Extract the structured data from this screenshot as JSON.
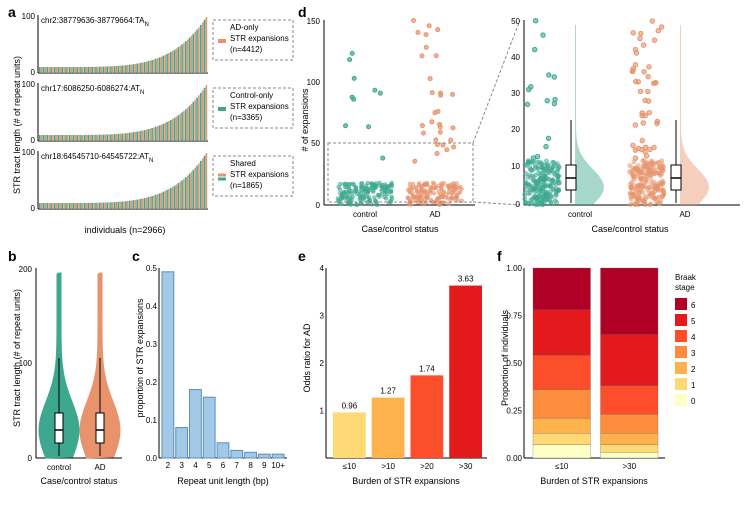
{
  "colors": {
    "ad": "#e8936c",
    "control": "#3da88f",
    "bar_blue": "#a3c9e8",
    "braak": [
      "#fefec7",
      "#fed976",
      "#feb24c",
      "#fd8d3c",
      "#fc4e2a",
      "#e31a1c",
      "#b10026"
    ],
    "axis": "#000000",
    "box_stroke": "#333333",
    "grid": "#888888"
  },
  "panel_a": {
    "label": "a",
    "ylabel": "STR tract length (# of repeat units)",
    "xlabel": "individuals (n=2966)",
    "ymax": 100,
    "tracks": [
      {
        "title": "chr2:38779636-38779664:TA",
        "subscript": "N"
      },
      {
        "title": "chr17:6086250-6086274:AT",
        "subscript": "N"
      },
      {
        "title": "chr18:64545710-64545722:AT",
        "subscript": "N"
      }
    ],
    "legends": [
      {
        "text": "AD-only\nSTR expansions\n(n=4412)",
        "color": "#e8936c"
      },
      {
        "text": "Control-only\nSTR expansions\n(n=3365)",
        "color": "#3da88f"
      },
      {
        "text": "Shared\nSTR expansions\n(n=1865)",
        "color_top": "#e8936c",
        "color_bottom": "#3da88f"
      }
    ]
  },
  "panel_b": {
    "label": "b",
    "xlabel": "Case/control status",
    "ylabel": "STR tract length (# of repeat units)",
    "ymax": 200,
    "categories": [
      "control",
      "AD"
    ]
  },
  "panel_c": {
    "label": "c",
    "xlabel": "Repeat unit length (bp)",
    "ylabel": "proportion of STR expansions",
    "categories": [
      "2",
      "3",
      "4",
      "5",
      "6",
      "7",
      "8",
      "9",
      "10+"
    ],
    "values": [
      0.49,
      0.08,
      0.18,
      0.16,
      0.04,
      0.02,
      0.015,
      0.01,
      0.01
    ],
    "ymax": 0.5
  },
  "panel_d": {
    "label": "d",
    "xlabel": "Case/control status",
    "ylabel": "# of expansions",
    "categories": [
      "control",
      "AD"
    ],
    "left_ymax": 150,
    "right_ymax": 50
  },
  "panel_e": {
    "label": "e",
    "xlabel": "Burden of STR expansions",
    "ylabel": "Odds ratio for AD",
    "categories": [
      "≤10",
      ">10",
      ">20",
      ">30"
    ],
    "values": [
      0.96,
      1.27,
      1.74,
      3.63
    ],
    "colors": [
      "#fed976",
      "#feb24c",
      "#fc4e2a",
      "#e31a1c"
    ],
    "ymax": 4
  },
  "panel_f": {
    "label": "f",
    "xlabel": "Burden of STR expansions",
    "ylabel": "Proportion of individuals",
    "legend_title": "Braak\nstage",
    "legend_labels": [
      "6",
      "5",
      "4",
      "3",
      "2",
      "1",
      "0"
    ],
    "categories": [
      "≤10",
      ">30"
    ],
    "stacks": [
      [
        0.07,
        0.06,
        0.08,
        0.15,
        0.18,
        0.24,
        0.22
      ],
      [
        0.03,
        0.04,
        0.06,
        0.1,
        0.15,
        0.27,
        0.35
      ]
    ],
    "ymax": 1.0
  }
}
